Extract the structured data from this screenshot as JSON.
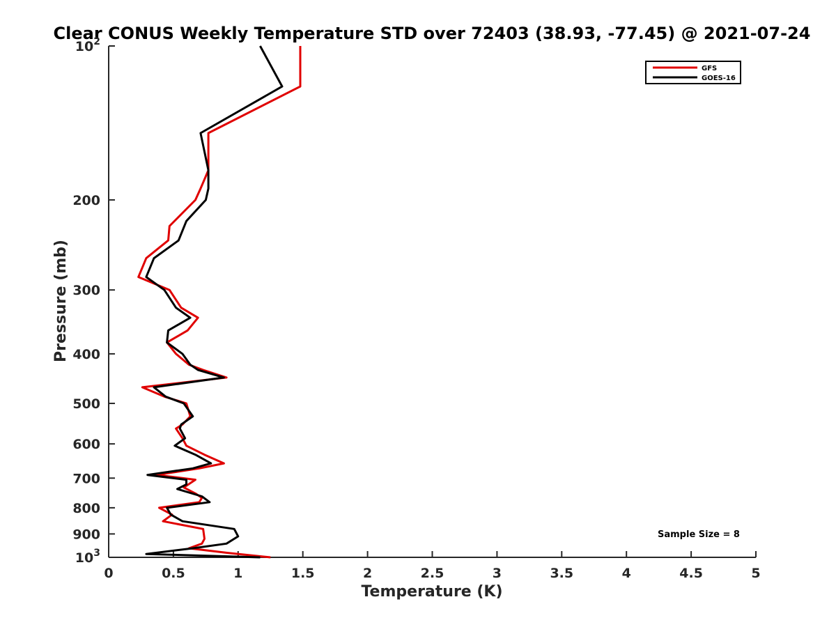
{
  "chart_data": {
    "type": "line",
    "title": "Clear CONUS Weekly Temperature STD over 72403 (38.93, -77.45) @ 2021-07-24",
    "xlabel": "Temperature (K)",
    "ylabel": "Pressure (mb)",
    "xlim": [
      0,
      5
    ],
    "ylim": [
      100,
      1000
    ],
    "y_scale": "log",
    "y_reversed": true,
    "grid": false,
    "legend_position": "top-right",
    "x_ticks": [
      "0",
      "0.5",
      "1",
      "1.5",
      "2",
      "2.5",
      "3",
      "3.5",
      "4",
      "4.5",
      "5"
    ],
    "x_tick_values": [
      0,
      0.5,
      1,
      1.5,
      2,
      2.5,
      3,
      3.5,
      4,
      4.5,
      5
    ],
    "y_ticks": [
      {
        "value": 100,
        "base": "10",
        "exp": "2"
      },
      {
        "value": 200,
        "label": "200"
      },
      {
        "value": 300,
        "label": "300"
      },
      {
        "value": 400,
        "label": "400"
      },
      {
        "value": 500,
        "label": "500"
      },
      {
        "value": 600,
        "label": "600"
      },
      {
        "value": 700,
        "label": "700"
      },
      {
        "value": 800,
        "label": "800"
      },
      {
        "value": 900,
        "label": "900"
      },
      {
        "value": 1000,
        "base": "10",
        "exp": "3"
      }
    ],
    "series": [
      {
        "name": "GFS",
        "color": "#e00000",
        "points": [
          [
            1.48,
            100
          ],
          [
            1.48,
            120
          ],
          [
            0.77,
            148
          ],
          [
            0.77,
            175
          ],
          [
            0.71,
            190
          ],
          [
            0.67,
            200
          ],
          [
            0.47,
            225
          ],
          [
            0.46,
            240
          ],
          [
            0.29,
            260
          ],
          [
            0.23,
            283
          ],
          [
            0.47,
            300
          ],
          [
            0.56,
            325
          ],
          [
            0.69,
            340
          ],
          [
            0.61,
            360
          ],
          [
            0.45,
            380
          ],
          [
            0.52,
            400
          ],
          [
            0.62,
            420
          ],
          [
            0.73,
            430
          ],
          [
            0.91,
            445
          ],
          [
            0.26,
            465
          ],
          [
            0.43,
            485
          ],
          [
            0.6,
            500
          ],
          [
            0.63,
            530
          ],
          [
            0.57,
            550
          ],
          [
            0.52,
            560
          ],
          [
            0.57,
            585
          ],
          [
            0.6,
            605
          ],
          [
            0.74,
            630
          ],
          [
            0.89,
            655
          ],
          [
            0.7,
            670
          ],
          [
            0.37,
            690
          ],
          [
            0.67,
            705
          ],
          [
            0.58,
            730
          ],
          [
            0.67,
            750
          ],
          [
            0.72,
            765
          ],
          [
            0.7,
            780
          ],
          [
            0.39,
            800
          ],
          [
            0.49,
            825
          ],
          [
            0.42,
            850
          ],
          [
            0.73,
            880
          ],
          [
            0.74,
            920
          ],
          [
            0.72,
            940
          ],
          [
            0.62,
            960
          ],
          [
            0.92,
            980
          ],
          [
            1.25,
            1000
          ]
        ]
      },
      {
        "name": "GOES-16",
        "color": "#000000",
        "points": [
          [
            1.17,
            100
          ],
          [
            1.34,
            120
          ],
          [
            0.71,
            148
          ],
          [
            0.77,
            175
          ],
          [
            0.77,
            190
          ],
          [
            0.75,
            200
          ],
          [
            0.6,
            220
          ],
          [
            0.54,
            240
          ],
          [
            0.35,
            260
          ],
          [
            0.29,
            283
          ],
          [
            0.43,
            300
          ],
          [
            0.52,
            325
          ],
          [
            0.63,
            340
          ],
          [
            0.46,
            360
          ],
          [
            0.45,
            380
          ],
          [
            0.57,
            400
          ],
          [
            0.63,
            420
          ],
          [
            0.69,
            430
          ],
          [
            0.89,
            445
          ],
          [
            0.35,
            465
          ],
          [
            0.44,
            485
          ],
          [
            0.58,
            500
          ],
          [
            0.65,
            530
          ],
          [
            0.56,
            550
          ],
          [
            0.55,
            560
          ],
          [
            0.59,
            585
          ],
          [
            0.51,
            605
          ],
          [
            0.67,
            630
          ],
          [
            0.79,
            655
          ],
          [
            0.65,
            670
          ],
          [
            0.3,
            690
          ],
          [
            0.6,
            705
          ],
          [
            0.6,
            720
          ],
          [
            0.53,
            735
          ],
          [
            0.72,
            760
          ],
          [
            0.78,
            780
          ],
          [
            0.45,
            800
          ],
          [
            0.48,
            825
          ],
          [
            0.57,
            850
          ],
          [
            0.97,
            880
          ],
          [
            1.0,
            910
          ],
          [
            0.91,
            940
          ],
          [
            0.65,
            960
          ],
          [
            0.29,
            985
          ],
          [
            1.17,
            1000
          ]
        ]
      }
    ],
    "annotation": "Sample Size = 8"
  }
}
